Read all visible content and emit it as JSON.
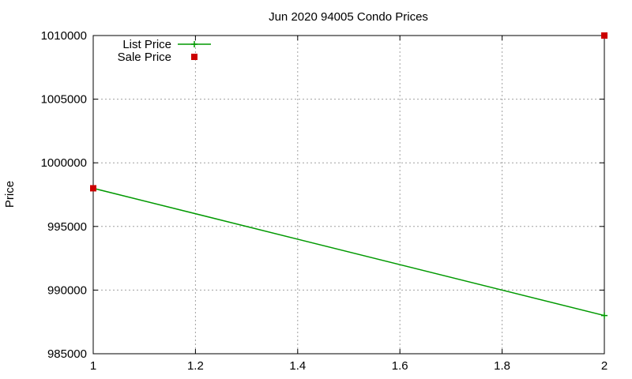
{
  "chart_data": {
    "type": "line",
    "title": "Jun 2020 94005 Condo Prices",
    "xlabel": "",
    "ylabel": "Price",
    "xlim": [
      1,
      2
    ],
    "ylim": [
      985000,
      1010000
    ],
    "xticks": [
      "1",
      "1.2",
      "1.4",
      "1.6",
      "1.8",
      "2"
    ],
    "xtick_values": [
      1,
      1.2,
      1.4,
      1.6,
      1.8,
      2
    ],
    "yticks": [
      "985000",
      "990000",
      "995000",
      "1000000",
      "1005000",
      "1010000"
    ],
    "ytick_values": [
      985000,
      990000,
      995000,
      1000000,
      1005000,
      1010000
    ],
    "grid": true,
    "legend_position": "top-left",
    "series": [
      {
        "name": "List Price",
        "kind": "line",
        "marker": "plus",
        "color": "#009900",
        "x": [
          1,
          2
        ],
        "y": [
          998000,
          988000
        ]
      },
      {
        "name": "Sale Price",
        "kind": "scatter",
        "marker": "square",
        "color": "#cc0000",
        "x": [
          1,
          2
        ],
        "y": [
          998000,
          1010000
        ]
      }
    ]
  }
}
